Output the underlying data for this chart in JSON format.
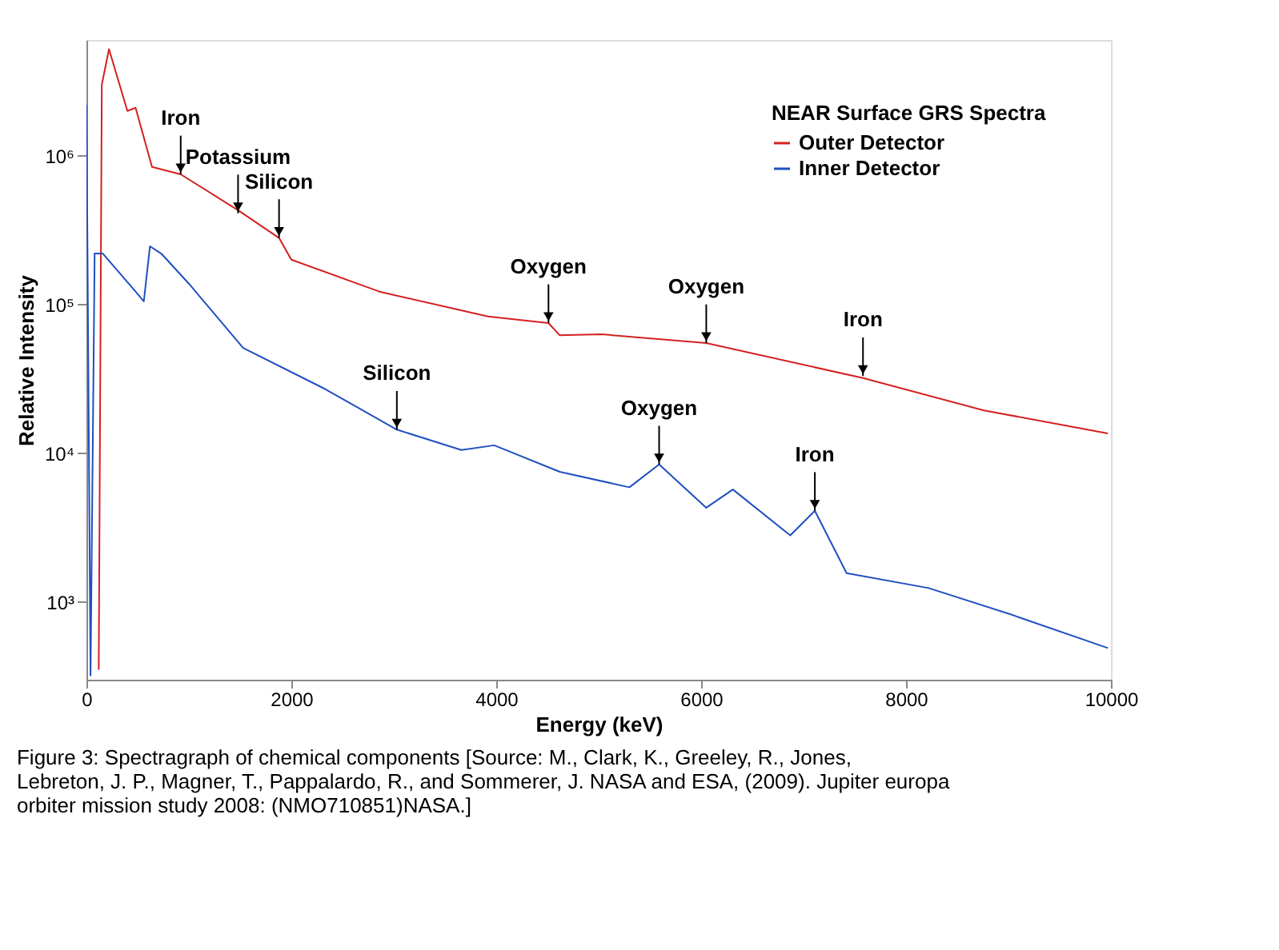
{
  "chart_data": {
    "type": "line",
    "xlabel": "Energy (keV)",
    "ylabel": "Relative Intensity",
    "legend_title": "NEAR Surface GRS Spectra",
    "legend": "top right",
    "log": "y",
    "xlim": [
      0,
      10000
    ],
    "ylim": [
      300,
      6000000
    ],
    "xticks": [
      0,
      2000,
      4000,
      6000,
      8000,
      10000
    ],
    "yticks": [
      {
        "value": 1000,
        "label": "10³"
      },
      {
        "value": 10000,
        "label": "10⁴"
      },
      {
        "value": 100000,
        "label": "10⁵"
      },
      {
        "value": 1000000,
        "label": "10⁶"
      }
    ],
    "series": [
      {
        "name": "Outer Detector",
        "color": "#d42020",
        "x": [
          120,
          150,
          220,
          400,
          480,
          640,
          920,
          1480,
          1880,
          2000,
          2860,
          3920,
          4510,
          4620,
          5030,
          6050,
          7580,
          8760,
          9970
        ],
        "values": [
          350,
          3000000,
          5200000,
          2000000,
          2100000,
          840000,
          750000,
          430000,
          280000,
          200000,
          122000,
          83000,
          75000,
          62000,
          63000,
          55000,
          32000,
          19400,
          13600
        ]
      },
      {
        "name": "Inner Detector",
        "color": "#1f4fc0",
        "x": [
          0,
          40,
          80,
          160,
          480,
          560,
          620,
          730,
          1000,
          1530,
          2330,
          3030,
          3660,
          3980,
          4620,
          5300,
          5590,
          6050,
          6310,
          6870,
          7110,
          7420,
          8220,
          9010,
          9970
        ],
        "values": [
          2200000,
          320,
          220000,
          220000,
          122000,
          105000,
          246000,
          220000,
          138000,
          51000,
          27000,
          14400,
          10500,
          11300,
          7500,
          5900,
          8400,
          4300,
          5700,
          2800,
          4100,
          1560,
          1240,
          830,
          490
        ]
      }
    ],
    "annotations": [
      {
        "text": "Iron",
        "x": 920,
        "y": 750000
      },
      {
        "text": "Potassium",
        "x": 1480,
        "y": 410000
      },
      {
        "text": "Silicon",
        "x": 1880,
        "y": 280000
      },
      {
        "text": "Oxygen",
        "x": 4510,
        "y": 75000
      },
      {
        "text": "Oxygen",
        "x": 6050,
        "y": 55000
      },
      {
        "text": "Iron",
        "x": 7580,
        "y": 33000
      },
      {
        "text": "Silicon",
        "x": 3030,
        "y": 14400
      },
      {
        "text": "Oxygen",
        "x": 5590,
        "y": 8400
      },
      {
        "text": "Iron",
        "x": 7110,
        "y": 4100
      },
      "Figure 3: Spectragraph of chemical components  [Source: M., Clark, K., Greeley, R., Jones,  Lebreton, J. P., Magner, T., Pappalardo, R.,  and Sommerer,  J. NASA and ESA, (2009). Jupiter europa orbiter mission study 2008: (NMO710851)NASA.]"
    ]
  }
}
